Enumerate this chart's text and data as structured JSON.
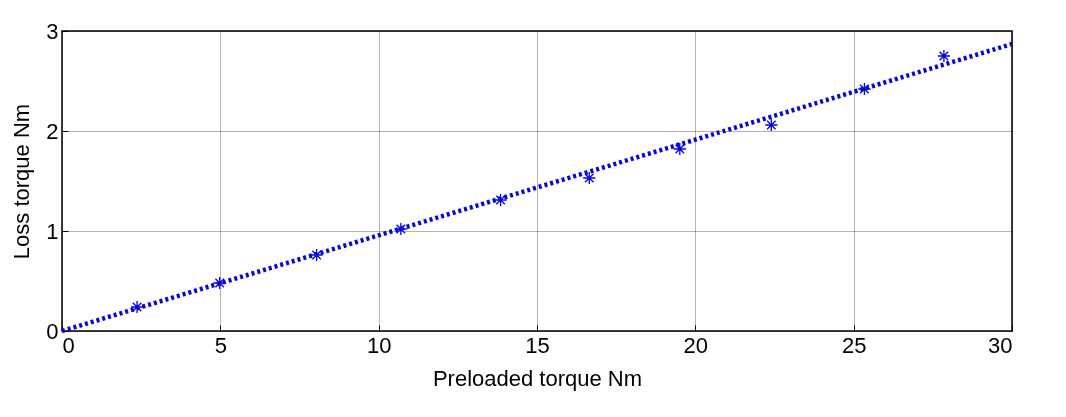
{
  "chart_data": {
    "type": "scatter",
    "xlabel": "Preloaded torque Nm",
    "ylabel": "Loss torque Nm",
    "xlim": [
      0,
      30
    ],
    "ylim": [
      0,
      3
    ],
    "xticks": [
      0,
      5,
      10,
      15,
      20,
      25,
      30
    ],
    "yticks": [
      0,
      1,
      2,
      3
    ],
    "grid": true,
    "marker": "cross",
    "series": [
      {
        "color": "#0000ff",
        "x": [
          2.37,
          4.98,
          8.04,
          10.7,
          13.85,
          16.65,
          19.51,
          22.4,
          25.34,
          27.85
        ],
        "values": [
          0.24,
          0.48,
          0.76,
          1.02,
          1.31,
          1.53,
          1.82,
          2.06,
          2.42,
          2.75
        ]
      },
      {
        "type": "line",
        "color": "#0000ff",
        "line_style": "dotted",
        "marker": "none",
        "x": [
          0,
          30
        ],
        "values": [
          0,
          2.87
        ]
      }
    ]
  }
}
